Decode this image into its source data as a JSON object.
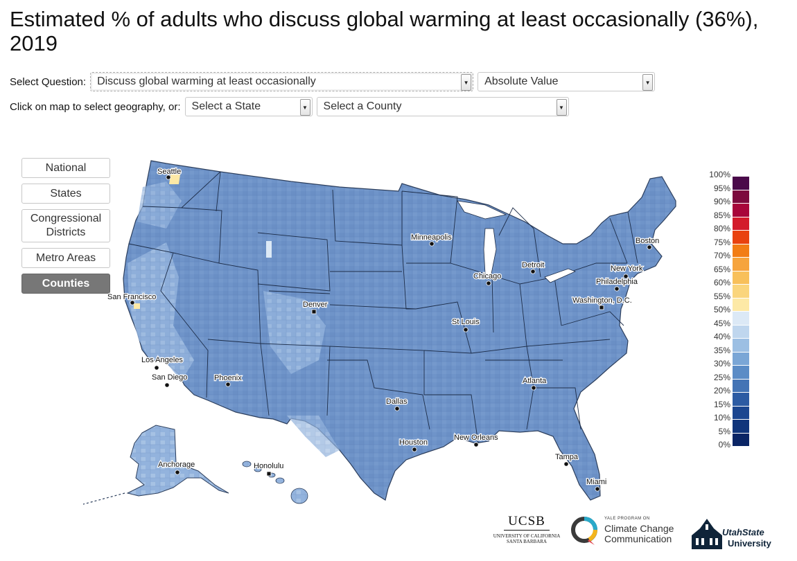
{
  "title": "Estimated % of adults who discuss global warming at least occasionally (36%), 2019",
  "controls": {
    "question_label": "Select Question:",
    "question_value": "Discuss global warming at least occasionally",
    "measure_value": "Absolute Value",
    "geo_label": "Click on map to select geography, or:",
    "state_placeholder": "Select a State",
    "county_placeholder": "Select a County"
  },
  "geo_buttons": [
    "National",
    "States",
    "Congressional Districts",
    "Metro Areas",
    "Counties"
  ],
  "active_geo": "Counties",
  "legend": {
    "ticks": [
      "100%",
      "95%",
      "90%",
      "85%",
      "80%",
      "75%",
      "70%",
      "65%",
      "60%",
      "55%",
      "50%",
      "45%",
      "40%",
      "35%",
      "30%",
      "25%",
      "20%",
      "15%",
      "10%",
      "5%",
      "0%"
    ],
    "colors": [
      "#4a0a4a",
      "#7d0a3d",
      "#a8063a",
      "#d31b2b",
      "#e9420f",
      "#f27d15",
      "#f6a43d",
      "#f8c05a",
      "#fad57c",
      "#fde9a6",
      "#dce9f6",
      "#bfd6ee",
      "#9cbfe3",
      "#7aa6d6",
      "#5b8cc6",
      "#4474b5",
      "#2c5ba3",
      "#1b4690",
      "#10357b",
      "#0a2565"
    ]
  },
  "cities": [
    {
      "name": "Seattle"
    },
    {
      "name": "San Francisco"
    },
    {
      "name": "Los Angeles"
    },
    {
      "name": "San Diego"
    },
    {
      "name": "Phoenix"
    },
    {
      "name": "Denver"
    },
    {
      "name": "Minneapolis"
    },
    {
      "name": "Chicago"
    },
    {
      "name": "Detroit"
    },
    {
      "name": "St Louis"
    },
    {
      "name": "Dallas"
    },
    {
      "name": "Houston"
    },
    {
      "name": "New Orleans"
    },
    {
      "name": "Atlanta"
    },
    {
      "name": "Tampa"
    },
    {
      "name": "Miami"
    },
    {
      "name": "Boston"
    },
    {
      "name": "New York"
    },
    {
      "name": "Philadelphia"
    },
    {
      "name": "Washington, D.C."
    },
    {
      "name": "Anchorage"
    },
    {
      "name": "Honolulu"
    }
  ],
  "logos": {
    "ucsb": "UCSB",
    "ucsb_sub1": "UNIVERSITY OF CALIFORNIA",
    "ucsb_sub2": "SANTA BARBARA",
    "yale_small": "YALE PROGRAM ON",
    "yale_line1": "Climate Change",
    "yale_line2": "Communication",
    "usu_line1": "UtahState",
    "usu_line2": "University"
  },
  "colors": {
    "map_base": "#6f94c9",
    "map_light": "#a6c2e4",
    "map_dark": "#4c74b4",
    "highlight": "#fde9a6"
  }
}
